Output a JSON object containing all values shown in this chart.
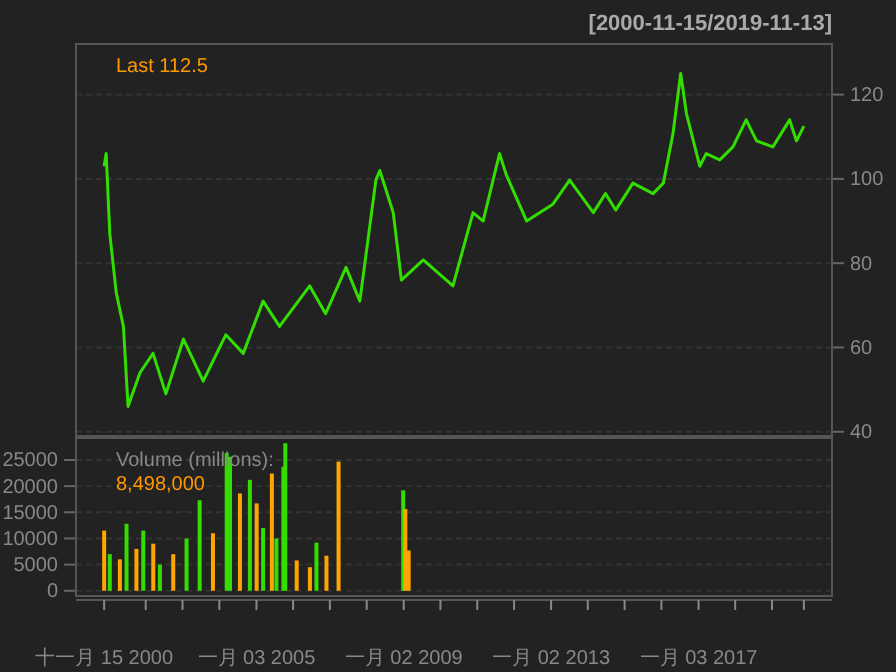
{
  "chart_data": [
    {
      "type": "line",
      "subtitle": "[2000-11-15/2019-11-13]",
      "annotations": [
        "Last 112.5"
      ],
      "xlim": [
        "2000-02-10",
        "2020-08-18"
      ],
      "ylim": [
        39,
        132
      ],
      "yticks": [
        40,
        60,
        80,
        100,
        120
      ],
      "grid": "y",
      "tick_labels": "y",
      "x": [
        "2000-11-15",
        "2000-12-05",
        "2001-01-10",
        "2001-03-15",
        "2001-05-25",
        "2001-07-10",
        "2001-11-05",
        "2002-03-15",
        "2002-07-20",
        "2003-01-10",
        "2003-07-25",
        "2004-03-05",
        "2004-08-25",
        "2005-03-10",
        "2005-08-20",
        "2006-06-15",
        "2006-11-20",
        "2007-06-10",
        "2007-10-25",
        "2008-04-01",
        "2008-05-10",
        "2008-09-20",
        "2008-12-10",
        "2009-07-15",
        "2010-05-05",
        "2010-11-20",
        "2011-02-28",
        "2011-08-10",
        "2011-10-15",
        "2012-05-05",
        "2013-01-20",
        "2013-07-05",
        "2014-02-25",
        "2014-06-25",
        "2014-10-05",
        "2015-03-25",
        "2015-10-10",
        "2016-01-20",
        "2016-04-25",
        "2016-07-10",
        "2016-09-05",
        "2017-01-15",
        "2017-03-20",
        "2017-08-01",
        "2017-12-10",
        "2018-04-20",
        "2018-08-01",
        "2019-01-10",
        "2019-06-25",
        "2019-09-01",
        "2019-11-13"
      ],
      "series": [
        {
          "color": "#33dd00",
          "values": [
            103,
            106,
            87,
            73,
            65,
            46,
            54,
            58.6,
            49,
            62,
            52,
            63,
            58.6,
            71,
            65,
            74.6,
            68,
            79,
            71,
            99.7,
            102,
            92,
            76,
            80.8,
            74.6,
            92,
            90,
            106,
            101,
            90,
            94,
            99.7,
            92,
            96.5,
            92.6,
            99,
            96.5,
            99,
            110.8,
            125,
            115.5,
            103,
            106,
            104.5,
            107.6,
            114,
            109,
            107.6,
            114,
            109,
            112.5
          ]
        }
      ]
    },
    {
      "type": "bar",
      "annotations": [
        "Volume (millions):",
        "8,498,000"
      ],
      "xlim": [
        "2000-02-10",
        "2020-08-18"
      ],
      "ylim": [
        -1000,
        29200
      ],
      "yticks": [
        0,
        5000,
        10000,
        15000,
        20000,
        25000
      ],
      "grid": "y",
      "xticks": [
        {
          "value": "2000-11-15",
          "label": "十一月 15 2000"
        },
        {
          "value": "2002-01-01",
          "label": null
        },
        {
          "value": "2003-01-01",
          "label": null
        },
        {
          "value": "2004-01-01",
          "label": null
        },
        {
          "value": "2005-01-03",
          "label": "一月 03 2005"
        },
        {
          "value": "2006-01-01",
          "label": null
        },
        {
          "value": "2007-01-01",
          "label": null
        },
        {
          "value": "2008-01-01",
          "label": null
        },
        {
          "value": "2009-01-02",
          "label": "一月 02 2009"
        },
        {
          "value": "2010-01-01",
          "label": null
        },
        {
          "value": "2011-01-01",
          "label": null
        },
        {
          "value": "2012-01-01",
          "label": null
        },
        {
          "value": "2013-01-02",
          "label": "一月 02 2013"
        },
        {
          "value": "2014-01-01",
          "label": null
        },
        {
          "value": "2015-01-01",
          "label": null
        },
        {
          "value": "2016-01-01",
          "label": null
        },
        {
          "value": "2017-01-03",
          "label": "一月 03 2017"
        },
        {
          "value": "2018-01-01",
          "label": null
        },
        {
          "value": "2019-01-01",
          "label": null
        },
        {
          "value": "2019-11-13",
          "label": null
        }
      ],
      "x": [
        "2000-11-15",
        "2001-01-10",
        "2001-04-20",
        "2001-06-25",
        "2001-10-01",
        "2001-12-08",
        "2002-03-17",
        "2002-05-22",
        "2002-10-01",
        "2003-02-10",
        "2003-06-20",
        "2003-10-30",
        "2004-03-14",
        "2004-04-16",
        "2004-07-23",
        "2004-10-30",
        "2005-01-05",
        "2005-03-10",
        "2005-06-05",
        "2005-07-20",
        "2005-09-27",
        "2005-10-16",
        "2006-02-06",
        "2006-06-17",
        "2006-08-21",
        "2006-11-28",
        "2007-03-28",
        "2008-12-28",
        "2009-01-18",
        "2009-02-20"
      ],
      "values": [
        11500,
        7000,
        6000,
        12800,
        8000,
        11500,
        9000,
        5000,
        7000,
        10000,
        17300,
        11000,
        26300,
        25600,
        18600,
        21200,
        16700,
        12000,
        22400,
        10000,
        23700,
        28200,
        5800,
        4500,
        9200,
        6700,
        24700,
        19200,
        15600,
        7700
      ],
      "colors": [
        "#ffa500",
        "#33dd00",
        "#ffa500",
        "#33dd00",
        "#ffa500",
        "#33dd00",
        "#ffa500",
        "#33dd00",
        "#ffa500",
        "#33dd00",
        "#33dd00",
        "#ffa500",
        "#33dd00",
        "#33dd00",
        "#ffa500",
        "#33dd00",
        "#ffa500",
        "#33dd00",
        "#ffa500",
        "#33dd00",
        "#33dd00",
        "#33dd00",
        "#ffa500",
        "#ffa500",
        "#33dd00",
        "#ffa500",
        "#ffa500",
        "#33dd00",
        "#ffa500",
        "#ffa500"
      ]
    }
  ]
}
